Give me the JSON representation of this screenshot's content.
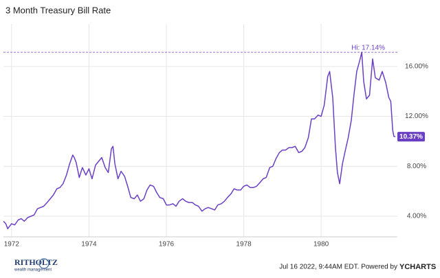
{
  "chart_data": {
    "type": "line",
    "title": "3 Month Treasury Bill Rate",
    "x": [
      1971.79,
      1971.85,
      1971.9,
      1972.0,
      1972.08,
      1972.17,
      1972.25,
      1972.33,
      1972.42,
      1972.5,
      1972.58,
      1972.67,
      1972.75,
      1972.83,
      1972.92,
      1973.0,
      1973.08,
      1973.17,
      1973.25,
      1973.33,
      1973.42,
      1973.5,
      1973.58,
      1973.62,
      1973.67,
      1973.75,
      1973.83,
      1973.92,
      1974.0,
      1974.08,
      1974.17,
      1974.25,
      1974.33,
      1974.42,
      1974.5,
      1974.58,
      1974.62,
      1974.67,
      1974.75,
      1974.83,
      1974.92,
      1975.0,
      1975.08,
      1975.17,
      1975.25,
      1975.33,
      1975.42,
      1975.5,
      1975.58,
      1975.67,
      1975.75,
      1975.83,
      1975.92,
      1976.0,
      1976.08,
      1976.17,
      1976.25,
      1976.33,
      1976.42,
      1976.5,
      1976.58,
      1976.67,
      1976.75,
      1976.83,
      1976.92,
      1977.0,
      1977.08,
      1977.17,
      1977.25,
      1977.33,
      1977.42,
      1977.5,
      1977.58,
      1977.67,
      1977.75,
      1977.83,
      1977.92,
      1978.0,
      1978.08,
      1978.17,
      1978.25,
      1978.33,
      1978.42,
      1978.5,
      1978.58,
      1978.67,
      1978.75,
      1978.83,
      1978.92,
      1979.0,
      1979.08,
      1979.17,
      1979.25,
      1979.33,
      1979.42,
      1979.5,
      1979.58,
      1979.67,
      1979.75,
      1979.83,
      1979.92,
      1980.0,
      1980.08,
      1980.17,
      1980.22,
      1980.3,
      1980.37,
      1980.42,
      1980.48,
      1980.55,
      1980.62,
      1980.7,
      1980.78,
      1980.85,
      1980.92,
      1981.0,
      1981.05,
      1981.1,
      1981.17,
      1981.25,
      1981.33,
      1981.4,
      1981.5,
      1981.58,
      1981.67,
      1981.75,
      1981.8,
      1981.85,
      1981.88,
      1981.92
    ],
    "values": [
      3.6,
      3.4,
      3.0,
      3.4,
      3.3,
      3.7,
      3.8,
      3.6,
      3.9,
      4.0,
      4.1,
      4.6,
      4.7,
      4.8,
      5.1,
      5.4,
      5.7,
      6.2,
      6.3,
      6.6,
      7.3,
      8.2,
      8.9,
      8.7,
      8.3,
      7.1,
      7.9,
      7.3,
      7.8,
      7.0,
      8.1,
      8.4,
      8.7,
      7.9,
      7.5,
      9.4,
      9.6,
      8.2,
      7.0,
      7.6,
      7.2,
      6.4,
      5.5,
      5.4,
      5.7,
      5.2,
      5.4,
      6.1,
      6.5,
      6.4,
      5.9,
      5.5,
      5.4,
      4.9,
      4.9,
      5.0,
      4.8,
      5.2,
      5.4,
      5.2,
      5.1,
      5.1,
      4.9,
      4.8,
      4.4,
      4.6,
      4.7,
      4.6,
      4.5,
      4.9,
      5.0,
      5.2,
      5.5,
      5.8,
      6.2,
      6.1,
      6.1,
      6.4,
      6.5,
      6.3,
      6.3,
      6.4,
      6.7,
      7.0,
      7.1,
      7.9,
      8.0,
      8.6,
      9.1,
      9.3,
      9.3,
      9.5,
      9.5,
      9.6,
      9.1,
      9.2,
      9.5,
      10.3,
      11.8,
      11.8,
      12.1,
      12.0,
      12.9,
      15.2,
      15.6,
      13.5,
      9.5,
      7.5,
      6.6,
      8.2,
      9.2,
      10.3,
      11.7,
      13.8,
      15.6,
      16.5,
      17.14,
      14.8,
      13.4,
      13.7,
      16.6,
      15.1,
      14.9,
      15.6,
      14.7,
      13.5,
      13.2,
      10.9,
      10.4,
      10.37
    ],
    "color": "#6a3fc4",
    "xlim": [
      1971.79,
      1981.97
    ],
    "xticks": [
      1972,
      1974,
      1976,
      1978,
      1980
    ],
    "ylim": [
      2.35,
      19.4
    ],
    "yticks": [
      {
        "value": 4,
        "label": "4.00%"
      },
      {
        "value": 8,
        "label": "8.00%"
      },
      {
        "value": 12,
        "label": "12.00%"
      },
      {
        "value": 16,
        "label": "16.00%"
      }
    ],
    "grid": true,
    "annotations": [
      {
        "label": "Hi: 17.14%",
        "value": 17.14,
        "kind": "high"
      },
      {
        "label": "10.37%",
        "value": 10.37,
        "kind": "last"
      }
    ]
  },
  "footer": {
    "timestamp": "Jul 16 2022, 9:44AM EDT. Powered by",
    "brand": "YCHARTS"
  },
  "logo": {
    "name": "RITHOLTZ",
    "tagline": "wealth management"
  }
}
